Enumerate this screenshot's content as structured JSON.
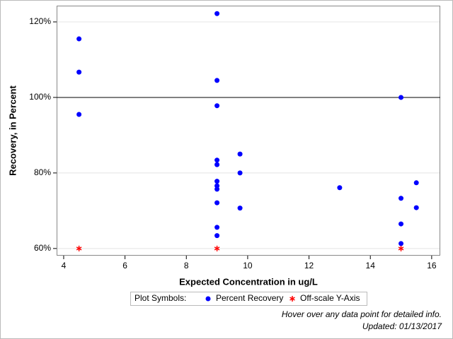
{
  "chart_data": {
    "type": "scatter",
    "x_label": "Expected Concentration in ug/L",
    "y_label": "Recovery, in Percent",
    "xlim": [
      3.77,
      16.28
    ],
    "xticks": [
      4,
      6,
      8,
      10,
      12,
      14,
      16
    ],
    "ylim": [
      58.1,
      124.3
    ],
    "yticks": [
      {
        "value": 60,
        "label": "60%"
      },
      {
        "value": 80,
        "label": "80%"
      },
      {
        "value": 100,
        "label": "100%"
      },
      {
        "value": 120,
        "label": "120%"
      }
    ],
    "grid": true,
    "reference_line": 100,
    "legend_title": "Plot Symbols:",
    "series": [
      {
        "name": "Percent Recovery",
        "color": "#0000ff",
        "marker": "dot",
        "x": [
          4.5,
          4.5,
          4.5,
          9,
          9,
          9,
          9,
          9,
          9,
          9,
          9,
          9,
          9,
          9,
          9.75,
          9.75,
          9.75,
          13,
          15,
          15,
          15,
          15,
          15.5,
          15.5
        ],
        "values": [
          115.5,
          106.7,
          95.5,
          122.2,
          104.5,
          97.8,
          83.4,
          82.2,
          77.8,
          76.6,
          75.7,
          72.1,
          65.6,
          63.4,
          85.0,
          80.0,
          70.7,
          76.1,
          100,
          73.3,
          66.5,
          61.3,
          77.4,
          70.8
        ]
      },
      {
        "name": "Off-scale Y-Axis",
        "color": "#ff0000",
        "marker": "asterisk",
        "x": [
          4.5,
          9,
          15
        ],
        "values": [
          60,
          60,
          60
        ]
      }
    ],
    "footnotes": [
      "Hover over any data point for detailed info.",
      "Updated: 01/13/2017"
    ]
  }
}
